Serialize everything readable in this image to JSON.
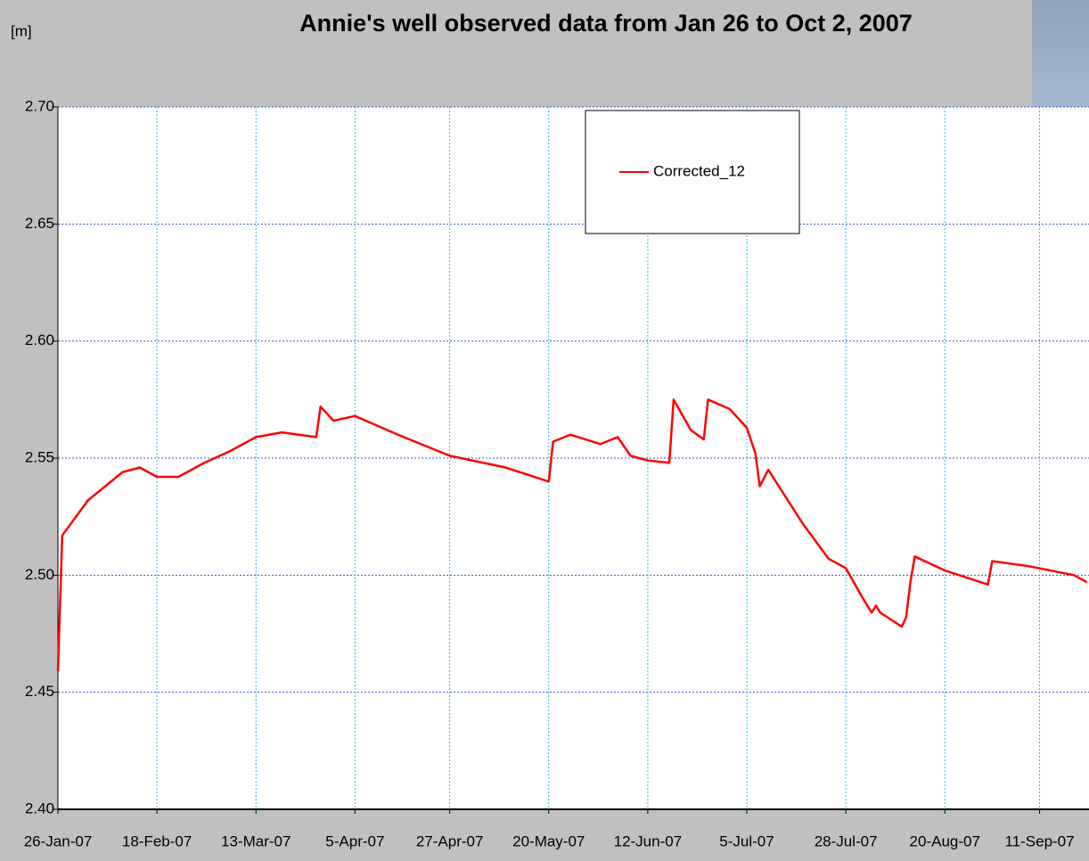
{
  "chart_data": {
    "type": "line",
    "title": "Annie's well observed data from Jan 26 to Oct 2, 2007",
    "y_label": "[m]",
    "xlim": [
      "2007-01-26",
      "2007-10-02"
    ],
    "ylim": [
      2.4,
      2.7
    ],
    "yticks": [
      {
        "value": 2.4,
        "label": "2.40"
      },
      {
        "value": 2.45,
        "label": "2.45"
      },
      {
        "value": 2.5,
        "label": "2.50"
      },
      {
        "value": 2.55,
        "label": "2.55"
      },
      {
        "value": 2.6,
        "label": "2.60"
      },
      {
        "value": 2.65,
        "label": "2.65"
      },
      {
        "value": 2.7,
        "label": "2.70"
      }
    ],
    "xticks": [
      {
        "value": "2007-01-26",
        "label": "26-Jan-07"
      },
      {
        "value": "2007-02-18",
        "label": "18-Feb-07"
      },
      {
        "value": "2007-03-13",
        "label": "13-Mar-07"
      },
      {
        "value": "2007-04-05",
        "label": "5-Apr-07"
      },
      {
        "value": "2007-04-27",
        "label": "27-Apr-07"
      },
      {
        "value": "2007-05-20",
        "label": "20-May-07"
      },
      {
        "value": "2007-06-12",
        "label": "12-Jun-07"
      },
      {
        "value": "2007-07-05",
        "label": "5-Jul-07"
      },
      {
        "value": "2007-07-28",
        "label": "28-Jul-07"
      },
      {
        "value": "2007-08-20",
        "label": "20-Aug-07"
      },
      {
        "value": "2007-09-11",
        "label": "11-Sep-07"
      }
    ],
    "grid": true,
    "legend": "top-center",
    "x": [
      "2007-01-26",
      "2007-01-27",
      "2007-02-02",
      "2007-02-10",
      "2007-02-14",
      "2007-02-18",
      "2007-02-23",
      "2007-03-01",
      "2007-03-07",
      "2007-03-13",
      "2007-03-19",
      "2007-03-27",
      "2007-03-28",
      "2007-03-31",
      "2007-04-05",
      "2007-04-15",
      "2007-04-27",
      "2007-05-10",
      "2007-05-15",
      "2007-05-20",
      "2007-05-21",
      "2007-05-25",
      "2007-06-01",
      "2007-06-05",
      "2007-06-08",
      "2007-06-12",
      "2007-06-17",
      "2007-06-18",
      "2007-06-22",
      "2007-06-25",
      "2007-06-26",
      "2007-07-01",
      "2007-07-05",
      "2007-07-07",
      "2007-07-08",
      "2007-07-10",
      "2007-07-18",
      "2007-07-24",
      "2007-07-28",
      "2007-08-01",
      "2007-08-03",
      "2007-08-04",
      "2007-08-05",
      "2007-08-10",
      "2007-08-11",
      "2007-08-12",
      "2007-08-13",
      "2007-08-20",
      "2007-08-30",
      "2007-08-31",
      "2007-09-08",
      "2007-09-19",
      "2007-09-22"
    ],
    "series": [
      {
        "name": "Corrected_12",
        "color": "#ff0000",
        "values": [
          2.459,
          2.517,
          2.532,
          2.544,
          2.546,
          2.542,
          2.542,
          2.548,
          2.553,
          2.559,
          2.561,
          2.559,
          2.572,
          2.566,
          2.568,
          2.56,
          2.551,
          2.546,
          2.543,
          2.54,
          2.557,
          2.56,
          2.556,
          2.559,
          2.551,
          2.549,
          2.548,
          2.575,
          2.562,
          2.558,
          2.575,
          2.571,
          2.563,
          2.552,
          2.538,
          2.545,
          2.522,
          2.507,
          2.503,
          2.49,
          2.484,
          2.487,
          2.484,
          2.478,
          2.482,
          2.497,
          2.508,
          2.502,
          2.496,
          2.506,
          2.504,
          2.5,
          2.497
        ]
      }
    ]
  }
}
